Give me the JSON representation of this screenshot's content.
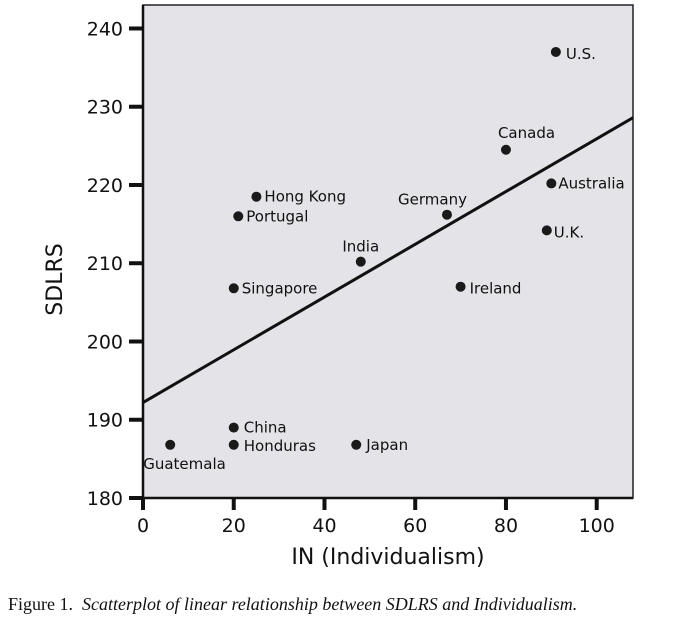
{
  "chart_data": {
    "type": "scatter",
    "xlabel": "IN (Individualism)",
    "ylabel": "SDLRS",
    "xlim": [
      0,
      108
    ],
    "ylim": [
      180,
      243
    ],
    "xticks": [
      0,
      20,
      40,
      60,
      80,
      100
    ],
    "yticks": [
      180,
      190,
      200,
      210,
      220,
      230,
      240
    ],
    "grid": false,
    "background": "#e3e3e8",
    "point_color": "#1a1a1a",
    "points": [
      {
        "label": "U.S.",
        "x": 91,
        "y": 237
      },
      {
        "label": "Canada",
        "x": 80,
        "y": 224.5
      },
      {
        "label": "Australia",
        "x": 90,
        "y": 220.2
      },
      {
        "label": "Hong Kong",
        "x": 25,
        "y": 218.5
      },
      {
        "label": "Portugal",
        "x": 21,
        "y": 216
      },
      {
        "label": "Germany",
        "x": 67,
        "y": 216.2
      },
      {
        "label": "U.K.",
        "x": 89,
        "y": 214.2
      },
      {
        "label": "India",
        "x": 48,
        "y": 210.2
      },
      {
        "label": "Singapore",
        "x": 20,
        "y": 206.8
      },
      {
        "label": "Ireland",
        "x": 70,
        "y": 207
      },
      {
        "label": "China",
        "x": 20,
        "y": 189
      },
      {
        "label": "Honduras",
        "x": 20,
        "y": 186.8
      },
      {
        "label": "Guatemala",
        "x": 6,
        "y": 186.8
      },
      {
        "label": "Japan",
        "x": 47,
        "y": 186.8
      }
    ],
    "regression_line": {
      "x": [
        0,
        108
      ],
      "y": [
        192.2,
        228.6
      ]
    }
  },
  "caption": {
    "prefix": "Figure 1.",
    "text": "Scatterplot of linear relationship between SDLRS and Individualism."
  }
}
